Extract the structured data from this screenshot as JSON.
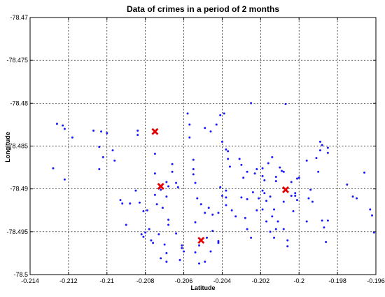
{
  "chart_data": {
    "type": "scatter",
    "title": "Data of crimes in a period of 2 months",
    "xlabel": "Latitude",
    "ylabel": "Longitude",
    "xlim": [
      -0.214,
      -0.196
    ],
    "ylim": [
      -78.5,
      -78.47
    ],
    "grid": true,
    "x_ticks": [
      -0.214,
      -0.212,
      -0.21,
      -0.208,
      -0.206,
      -0.204,
      -0.202,
      -0.2,
      -0.198,
      -0.196
    ],
    "x_tick_labels": [
      "-0.214",
      "-0.212",
      "-0.21",
      "-0.208",
      "-0.206",
      "-0.204",
      "-0.202",
      "-0.2",
      "-0.198",
      "-0.196"
    ],
    "y_ticks": [
      -78.47,
      -78.475,
      -78.48,
      -78.485,
      -78.49,
      -78.495,
      -78.5
    ],
    "y_tick_labels": [
      "-78.47",
      "-78.475",
      "-78.48",
      "-78.485",
      "-78.49",
      "-78.495",
      "-78.5"
    ],
    "colors": {
      "points": "#1a1aff",
      "centroids": "#e60000",
      "grid": "#000000"
    },
    "series": [
      {
        "marker": "dot",
        "points": [
          [
            -0.2126,
            -78.4824
          ],
          [
            -0.2123,
            -78.4826
          ],
          [
            -0.2122,
            -78.483
          ],
          [
            -0.2118,
            -78.484
          ],
          [
            -0.2128,
            -78.4876
          ],
          [
            -0.2122,
            -78.4889
          ],
          [
            -0.2107,
            -78.4832
          ],
          [
            -0.2103,
            -78.4833
          ],
          [
            -0.21,
            -78.4835
          ],
          [
            -0.2097,
            -78.4855
          ],
          [
            -0.2104,
            -78.4851
          ],
          [
            -0.2104,
            -78.4877
          ],
          [
            -0.2102,
            -78.4863
          ],
          [
            -0.2096,
            -78.4867
          ],
          [
            -0.2093,
            -78.4913
          ],
          [
            -0.2092,
            -78.4917
          ],
          [
            -0.209,
            -78.4942
          ],
          [
            -0.2081,
            -78.4926
          ],
          [
            -0.2088,
            -78.4917
          ],
          [
            -0.2083,
            -78.4916
          ],
          [
            -0.2079,
            -78.4925
          ],
          [
            -0.2084,
            -78.4832
          ],
          [
            -0.2084,
            -78.4837
          ],
          [
            -0.2075,
            -78.4859
          ],
          [
            -0.2075,
            -78.4882
          ],
          [
            -0.2072,
            -78.4901
          ],
          [
            -0.2075,
            -78.4907
          ],
          [
            -0.2074,
            -78.4918
          ],
          [
            -0.2078,
            -78.4947
          ],
          [
            -0.208,
            -78.4951
          ],
          [
            -0.2081,
            -78.4956
          ],
          [
            -0.2082,
            -78.4953
          ],
          [
            -0.2077,
            -78.496
          ],
          [
            -0.2076,
            -78.4963
          ],
          [
            -0.2073,
            -78.4953
          ],
          [
            -0.207,
            -78.4965
          ],
          [
            -0.2069,
            -78.4975
          ],
          [
            -0.2072,
            -78.4981
          ],
          [
            -0.2069,
            -78.4985
          ],
          [
            -0.2068,
            -78.4942
          ],
          [
            -0.2068,
            -78.4936
          ],
          [
            -0.2071,
            -78.4922
          ],
          [
            -0.2069,
            -78.4909
          ],
          [
            -0.2068,
            -78.4897
          ],
          [
            -0.2069,
            -78.4892
          ],
          [
            -0.2066,
            -78.4871
          ],
          [
            -0.2066,
            -78.488
          ],
          [
            -0.2064,
            -78.4893
          ],
          [
            -0.2063,
            -78.4898
          ],
          [
            -0.2064,
            -78.4952
          ],
          [
            -0.2061,
            -78.4966
          ],
          [
            -0.2062,
            -78.4983
          ],
          [
            -0.2061,
            -78.4969
          ],
          [
            -0.206,
            -78.4973
          ],
          [
            -0.2058,
            -78.4812
          ],
          [
            -0.2057,
            -78.4825
          ],
          [
            -0.2057,
            -78.484
          ],
          [
            -0.2055,
            -78.4866
          ],
          [
            -0.2055,
            -78.4877
          ],
          [
            -0.2055,
            -78.4883
          ],
          [
            -0.2054,
            -78.4893
          ],
          [
            -0.2053,
            -78.4911
          ],
          [
            -0.2054,
            -78.4939
          ],
          [
            -0.2052,
            -78.4966
          ],
          [
            -0.2052,
            -78.4987
          ],
          [
            -0.2054,
            -78.4974
          ],
          [
            -0.2051,
            -78.4918
          ],
          [
            -0.2047,
            -78.4922
          ],
          [
            -0.2045,
            -78.493
          ],
          [
            -0.2045,
            -78.4949
          ],
          [
            -0.2048,
            -78.4957
          ],
          [
            -0.2049,
            -78.4985
          ],
          [
            -0.2046,
            -78.4973
          ],
          [
            -0.2046,
            -78.4833
          ],
          [
            -0.2049,
            -78.4829
          ],
          [
            -0.2043,
            -78.4825
          ],
          [
            -0.2041,
            -78.4814
          ],
          [
            -0.2039,
            -78.4812
          ],
          [
            -0.204,
            -78.4845
          ],
          [
            -0.2038,
            -78.4854
          ],
          [
            -0.2037,
            -78.4856
          ],
          [
            -0.2037,
            -78.4865
          ],
          [
            -0.2036,
            -78.4874
          ],
          [
            -0.2038,
            -78.4902
          ],
          [
            -0.2041,
            -78.4898
          ],
          [
            -0.204,
            -78.4908
          ],
          [
            -0.2042,
            -78.4928
          ],
          [
            -0.2038,
            -78.4919
          ],
          [
            -0.2035,
            -78.4925
          ],
          [
            -0.2033,
            -78.4932
          ],
          [
            -0.2042,
            -78.4963
          ],
          [
            -0.2038,
            -78.491
          ],
          [
            -0.2031,
            -78.4865
          ],
          [
            -0.203,
            -78.4872
          ],
          [
            -0.2029,
            -78.4887
          ],
          [
            -0.2027,
            -78.488
          ],
          [
            -0.203,
            -78.491
          ],
          [
            -0.2027,
            -78.4912
          ],
          [
            -0.2028,
            -78.4934
          ],
          [
            -0.2027,
            -78.4947
          ],
          [
            -0.2025,
            -78.4957
          ],
          [
            -0.2022,
            -78.4925
          ],
          [
            -0.2024,
            -78.4904
          ],
          [
            -0.2022,
            -78.4877
          ],
          [
            -0.2023,
            -78.4882
          ],
          [
            -0.2019,
            -78.4876
          ],
          [
            -0.2019,
            -78.4885
          ],
          [
            -0.2019,
            -78.4902
          ],
          [
            -0.2021,
            -78.4911
          ],
          [
            -0.2019,
            -78.4924
          ],
          [
            -0.2017,
            -78.4914
          ],
          [
            -0.2015,
            -78.4909
          ],
          [
            -0.2017,
            -78.4938
          ],
          [
            -0.2014,
            -78.4932
          ],
          [
            -0.2013,
            -78.4924
          ],
          [
            -0.2015,
            -78.495
          ],
          [
            -0.2013,
            -78.4957
          ],
          [
            -0.2012,
            -78.4947
          ],
          [
            -0.2011,
            -78.4938
          ],
          [
            -0.2018,
            -78.489
          ],
          [
            -0.2016,
            -78.487
          ],
          [
            -0.2014,
            -78.4863
          ],
          [
            -0.2012,
            -78.4886
          ],
          [
            -0.2012,
            -78.4891
          ],
          [
            -0.2009,
            -78.4879
          ],
          [
            -0.2008,
            -78.488
          ],
          [
            -0.2008,
            -78.4915
          ],
          [
            -0.2008,
            -78.4947
          ],
          [
            -0.2006,
            -78.496
          ],
          [
            -0.2006,
            -78.4967
          ],
          [
            -0.2004,
            -78.4892
          ],
          [
            -0.2004,
            -78.4908
          ],
          [
            -0.2001,
            -78.4888
          ],
          [
            -0.2002,
            -78.4905
          ],
          [
            -0.2001,
            -78.4913
          ],
          [
            -0.2003,
            -78.4926
          ],
          [
            -0.2,
            -78.4887
          ],
          [
            -0.1996,
            -78.4867
          ],
          [
            -0.1995,
            -78.4911
          ],
          [
            -0.1994,
            -78.4901
          ],
          [
            -0.1993,
            -78.4915
          ],
          [
            -0.1996,
            -78.4938
          ],
          [
            -0.1991,
            -78.4864
          ],
          [
            -0.199,
            -78.488
          ],
          [
            -0.1989,
            -78.4855
          ],
          [
            -0.1989,
            -78.4845
          ],
          [
            -0.1988,
            -78.4849
          ],
          [
            -0.1985,
            -78.4852
          ],
          [
            -0.1985,
            -78.4858
          ],
          [
            -0.1987,
            -78.4945
          ],
          [
            -0.1985,
            -78.4937
          ],
          [
            -0.1988,
            -78.4937
          ],
          [
            -0.1986,
            -78.4962
          ],
          [
            -0.1975,
            -78.4895
          ],
          [
            -0.1972,
            -78.4909
          ],
          [
            -0.197,
            -78.4911
          ],
          [
            -0.1966,
            -78.4881
          ],
          [
            -0.1963,
            -78.4924
          ],
          [
            -0.1962,
            -78.4931
          ],
          [
            -0.1961,
            -78.4951
          ],
          [
            -0.2007,
            -78.4801
          ],
          [
            -0.2025,
            -78.48
          ],
          [
            -0.2085,
            -78.4902
          ],
          [
            -0.2049,
            -78.4928
          ],
          [
            -0.2042,
            -78.4961
          ],
          [
            -0.201,
            -78.4875
          ],
          [
            -0.2002,
            -78.4908
          ],
          [
            -0.2018,
            -78.4905
          ]
        ]
      },
      {
        "marker": "x",
        "points": [
          [
            -0.2075,
            -78.4833
          ],
          [
            -0.2072,
            -78.4897
          ],
          [
            -0.2051,
            -78.496
          ],
          [
            -0.2007,
            -78.4901
          ]
        ]
      }
    ]
  }
}
